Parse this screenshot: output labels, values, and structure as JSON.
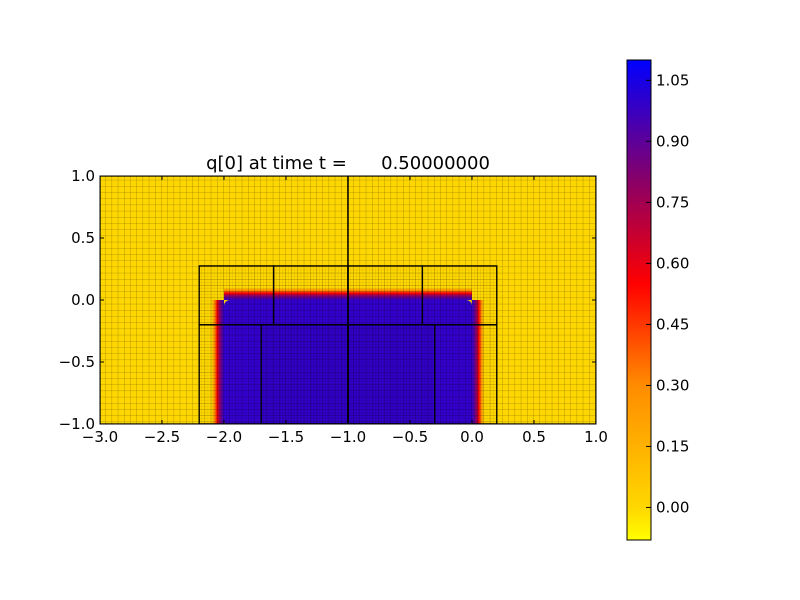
{
  "chart_data": {
    "type": "heatmap",
    "title": "q[0] at time t =      0.50000000",
    "xlabel": "",
    "ylabel": "",
    "xlim": [
      -3.0,
      1.0
    ],
    "ylim": [
      -1.0,
      1.0
    ],
    "x_ticks": [
      -3.0,
      -2.5,
      -2.0,
      -1.5,
      -1.0,
      -0.5,
      0.0,
      0.5,
      1.0
    ],
    "x_tick_labels": [
      "−3.0",
      "−2.5",
      "−2.0",
      "−1.5",
      "−1.0",
      "−0.5",
      "0.0",
      "0.5",
      "1.0"
    ],
    "y_ticks": [
      -1.0,
      -0.5,
      0.0,
      0.5,
      1.0
    ],
    "y_tick_labels": [
      "−1.0",
      "−0.5",
      "0.0",
      "0.5",
      "1.0"
    ],
    "field": {
      "background_value": 0.0,
      "region_value": 1.0,
      "region_x": [
        -2.0,
        0.0
      ],
      "region_y": [
        -1.0,
        0.0
      ],
      "transition_width": 0.1
    },
    "amr_levels": [
      {
        "level": 1,
        "cell_size": 0.025,
        "patches": [
          [
            -3.0,
            -1.0,
            -1.0,
            1.0
          ],
          [
            -1.0,
            1.0,
            -1.0,
            1.0
          ]
        ]
      },
      {
        "level": 2,
        "cell_size": 0.0125,
        "patches": [
          [
            -2.2,
            -1.6,
            -0.2,
            0.275
          ],
          [
            -1.6,
            -1.0,
            -0.2,
            0.275
          ],
          [
            -1.0,
            -0.4,
            -0.2,
            0.275
          ],
          [
            -0.4,
            0.2,
            -0.2,
            0.275
          ],
          [
            -2.2,
            -1.0,
            -1.0,
            -0.2
          ],
          [
            -1.0,
            0.2,
            -1.0,
            -0.2
          ]
        ]
      },
      {
        "level": 3,
        "cell_size": 0.00625,
        "patches": [
          [
            -1.7,
            -1.0,
            -1.0,
            -0.2
          ],
          [
            -1.0,
            -0.3,
            -1.0,
            -0.2
          ]
        ]
      }
    ],
    "colorbar": {
      "min": -0.08,
      "max": 1.1,
      "ticks": [
        0.0,
        0.15,
        0.3,
        0.45,
        0.6,
        0.75,
        0.9,
        1.05
      ],
      "tick_labels": [
        "0.00",
        "0.15",
        "0.30",
        "0.45",
        "0.60",
        "0.75",
        "0.90",
        "1.05"
      ],
      "colormap": [
        {
          "value": -0.08,
          "color": "#ffff00"
        },
        {
          "value": 0.0,
          "color": "#ffd700"
        },
        {
          "value": 0.3,
          "color": "#ff8c00"
        },
        {
          "value": 0.55,
          "color": "#ff0000"
        },
        {
          "value": 0.8,
          "color": "#8b0066"
        },
        {
          "value": 1.1,
          "color": "#0000ff"
        }
      ]
    },
    "colors": {
      "region": "#3300cc",
      "background": "#ffd700",
      "grid": "#000000"
    },
    "grid": true
  }
}
